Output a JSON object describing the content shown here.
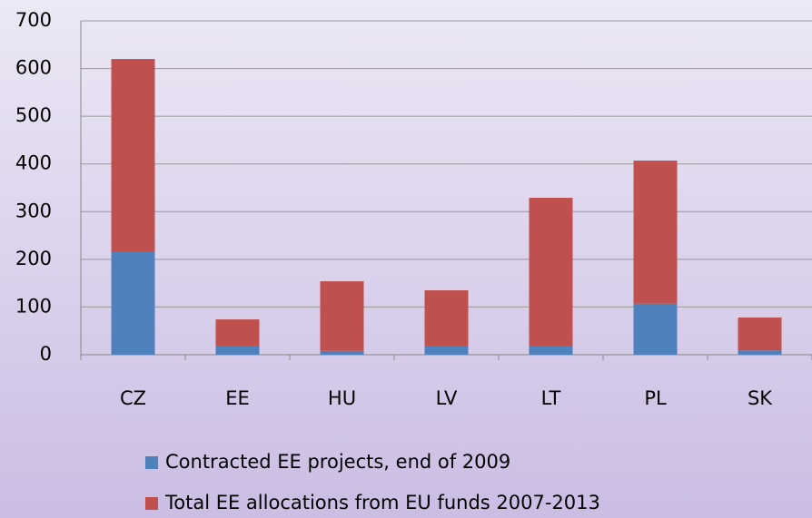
{
  "chart_data": {
    "type": "stacked_bar",
    "categories": [
      "CZ",
      "EE",
      "HU",
      "LV",
      "LT",
      "PL",
      "SK"
    ],
    "series": [
      {
        "name": "Contracted EE projects, end of 2009",
        "color": "#4f81bd",
        "values": [
          215,
          19,
          8,
          19,
          19,
          107,
          9
        ]
      },
      {
        "name": "Total EE allocations from EU funds 2007-2013",
        "color": "#c0504d",
        "values": [
          405,
          55,
          146,
          116,
          310,
          300,
          69
        ]
      }
    ],
    "ylim": [
      0,
      700
    ],
    "yticks": [
      0,
      100,
      200,
      300,
      400,
      500,
      600,
      700
    ],
    "grid": true
  }
}
